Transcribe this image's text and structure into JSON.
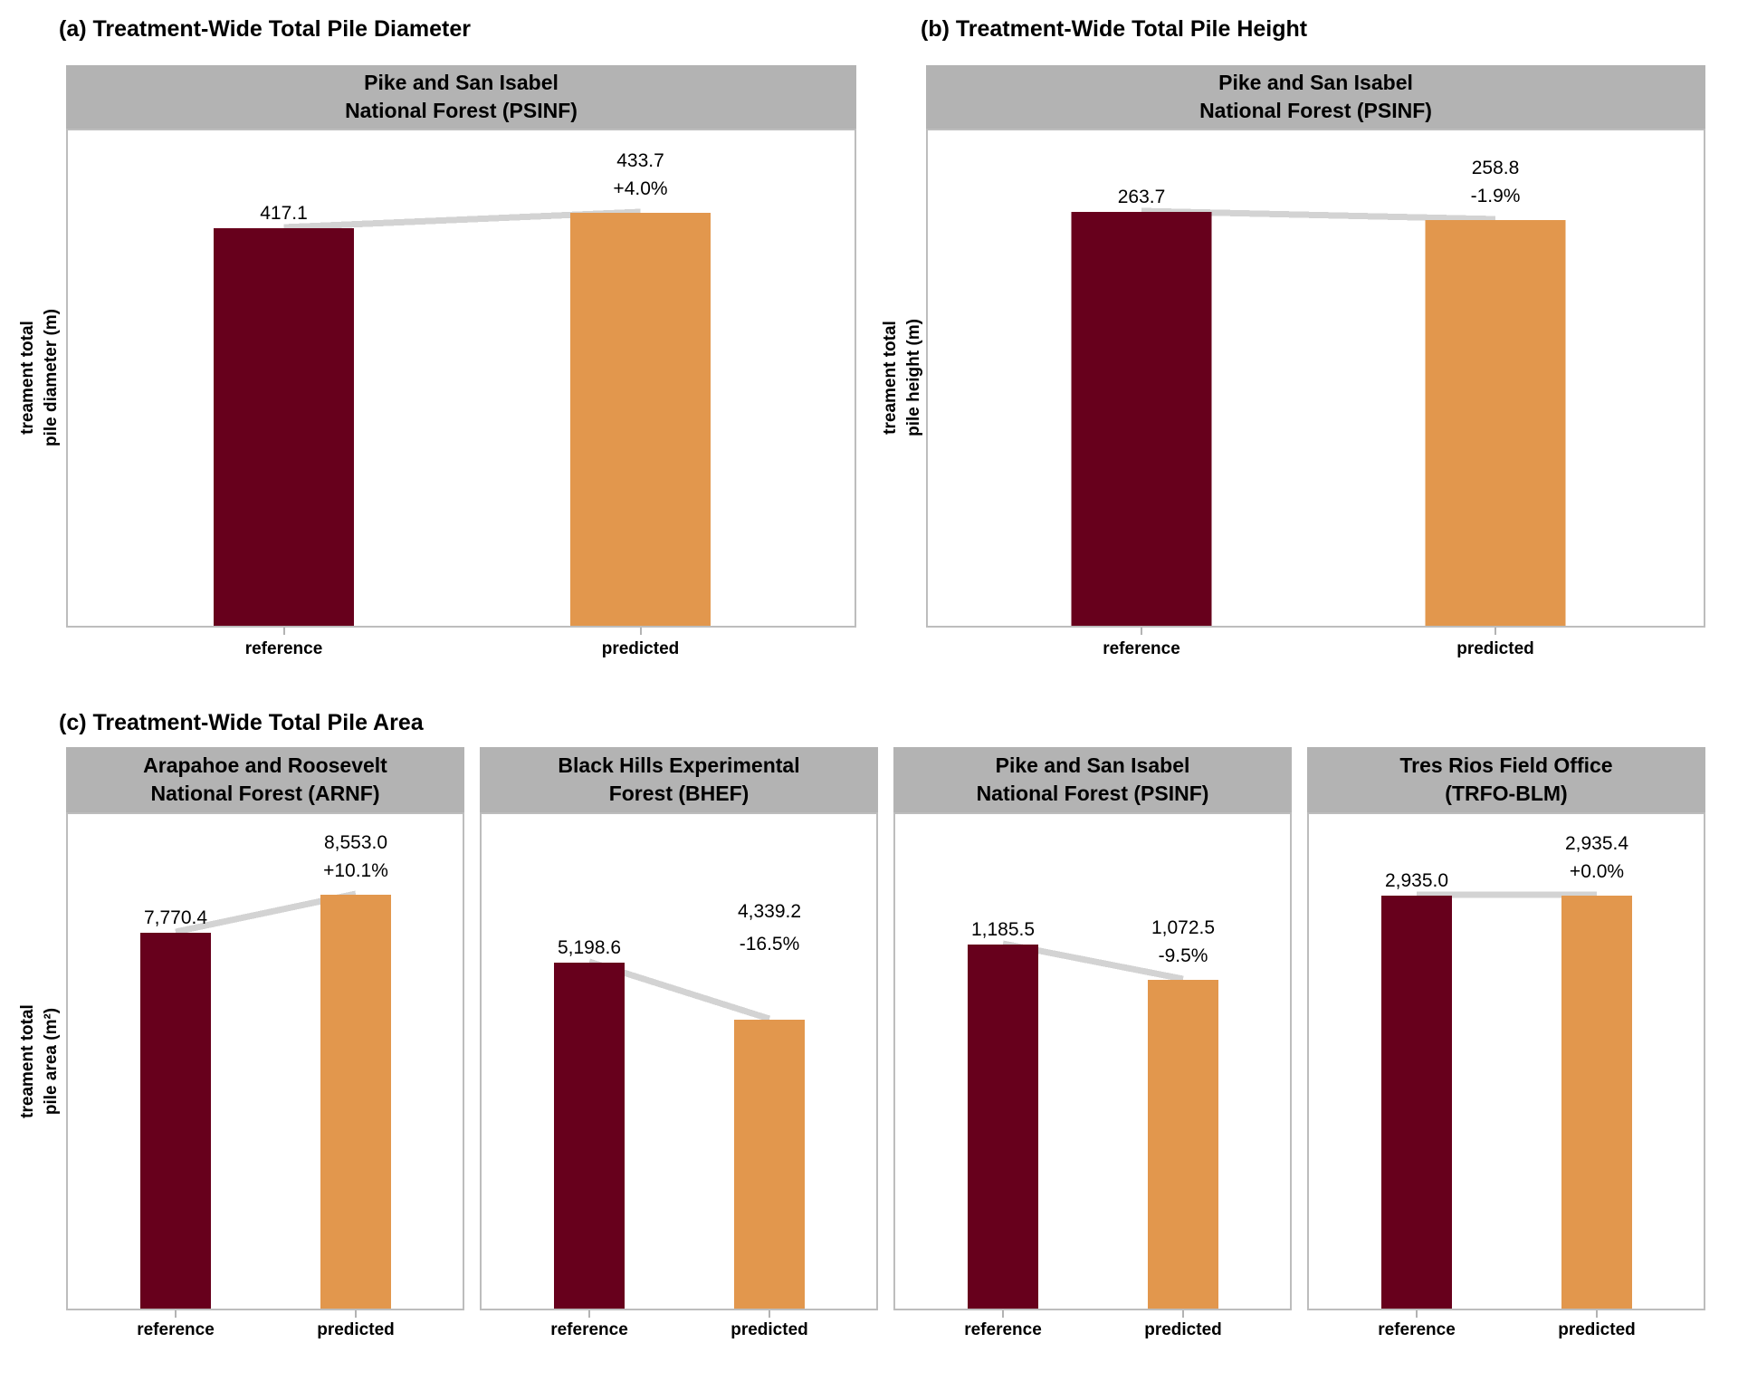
{
  "figure": {
    "colors": {
      "reference_bar": "#67001c",
      "predicted_bar": "#e2974d",
      "strip_background": "#b3b3b3",
      "panel_border": "#bdbdbd",
      "connector_line": "#d3d3d3",
      "tick": "#b3b3b3",
      "text": "#000000",
      "background": "#ffffff"
    }
  },
  "chart_data": [
    {
      "id": "a",
      "type": "bar",
      "title": "(a) Treatment-Wide Total Pile Diameter",
      "ylabel_lines": [
        "treament total",
        "pile diameter (m)"
      ],
      "categories": [
        "reference",
        "predicted"
      ],
      "legend": "none",
      "grid": "off",
      "facets": [
        {
          "label_lines": [
            "Pike and San Isabel",
            "National Forest (PSINF)"
          ],
          "bars": [
            {
              "category": "reference",
              "value": 417.1,
              "label": "417.1"
            },
            {
              "category": "predicted",
              "value": 433.7,
              "label": "433.7",
              "pct_label": "+4.0%"
            }
          ]
        }
      ]
    },
    {
      "id": "b",
      "type": "bar",
      "title": "(b) Treatment-Wide Total Pile Height",
      "ylabel_lines": [
        "treament total",
        "pile height (m)"
      ],
      "categories": [
        "reference",
        "predicted"
      ],
      "legend": "none",
      "grid": "off",
      "facets": [
        {
          "label_lines": [
            "Pike and San Isabel",
            "National Forest (PSINF)"
          ],
          "bars": [
            {
              "category": "reference",
              "value": 263.7,
              "label": "263.7"
            },
            {
              "category": "predicted",
              "value": 258.8,
              "label": "258.8",
              "pct_label": "-1.9%"
            }
          ]
        }
      ]
    },
    {
      "id": "c",
      "type": "bar",
      "title": "(c) Treatment-Wide Total Pile Area",
      "ylabel_lines": [
        "treament total",
        "pile area (m²)"
      ],
      "categories": [
        "reference",
        "predicted"
      ],
      "legend": "none",
      "grid": "off",
      "facets": [
        {
          "label_lines": [
            "Arapahoe and Roosevelt",
            "National Forest (ARNF)"
          ],
          "bars": [
            {
              "category": "reference",
              "value": 7770.4,
              "label": "7,770.4"
            },
            {
              "category": "predicted",
              "value": 8553.0,
              "label": "8,553.0",
              "pct_label": "+10.1%"
            }
          ]
        },
        {
          "label_lines": [
            "Black Hills Experimental",
            "Forest (BHEF)"
          ],
          "bars": [
            {
              "category": "reference",
              "value": 5198.6,
              "label": "5,198.6"
            },
            {
              "category": "predicted",
              "value": 4339.2,
              "label": "4,339.2",
              "pct_label": "-16.5%"
            }
          ]
        },
        {
          "label_lines": [
            "Pike and San Isabel",
            "National Forest (PSINF)"
          ],
          "bars": [
            {
              "category": "reference",
              "value": 1185.5,
              "label": "1,185.5"
            },
            {
              "category": "predicted",
              "value": 1072.5,
              "label": "1,072.5",
              "pct_label": "-9.5%"
            }
          ]
        },
        {
          "label_lines": [
            "Tres Rios Field Office",
            "(TRFO-BLM)"
          ],
          "bars": [
            {
              "category": "reference",
              "value": 2935.0,
              "label": "2,935.0"
            },
            {
              "category": "predicted",
              "value": 2935.4,
              "label": "2,935.4",
              "pct_label": "+0.0%"
            }
          ]
        }
      ]
    }
  ]
}
